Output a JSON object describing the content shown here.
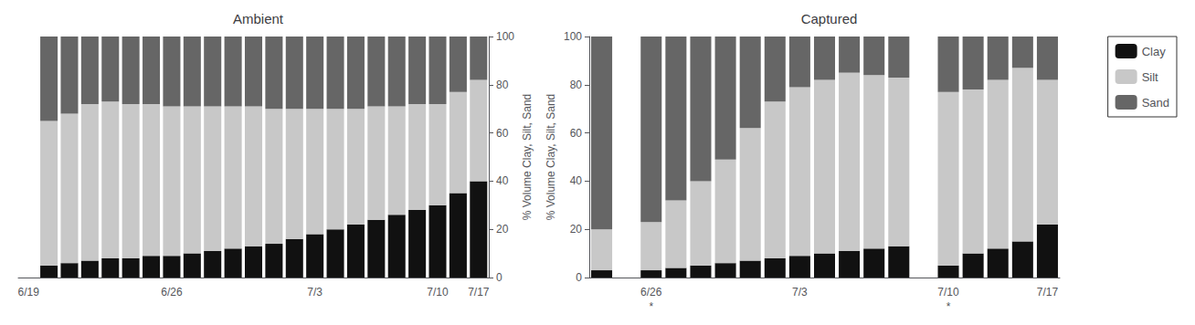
{
  "chart_data": [
    {
      "type": "bar",
      "title": "Ambient",
      "ylabel": "% Volume Clay, Silt, Sand",
      "stacked": true,
      "grid": false,
      "categories": [
        "6/19",
        null,
        null,
        null,
        null,
        null,
        null,
        "6/26",
        null,
        null,
        null,
        null,
        null,
        null,
        "7/3",
        null,
        null,
        null,
        null,
        null,
        "7/10",
        null,
        "7/17"
      ],
      "series": [
        {
          "name": "Clay",
          "color": "#111111",
          "values": [
            0,
            5,
            6,
            7,
            8,
            8,
            9,
            9,
            10,
            11,
            12,
            13,
            14,
            16,
            18,
            20,
            22,
            24,
            26,
            28,
            30,
            35,
            40
          ]
        },
        {
          "name": "Silt",
          "color": "#c8c8c8",
          "values": [
            0,
            60,
            62,
            65,
            65,
            64,
            63,
            62,
            61,
            60,
            59,
            58,
            56,
            54,
            52,
            50,
            48,
            47,
            45,
            44,
            42,
            42,
            42
          ]
        },
        {
          "name": "Sand",
          "color": "#666666",
          "values": [
            0,
            35,
            32,
            28,
            27,
            28,
            28,
            29,
            29,
            29,
            29,
            29,
            30,
            30,
            30,
            30,
            30,
            29,
            29,
            28,
            28,
            23,
            18
          ]
        }
      ],
      "ylim": [
        0,
        100
      ],
      "yticks": [
        0,
        20,
        40,
        60,
        80,
        100
      ]
    },
    {
      "type": "bar",
      "title": "Captured",
      "ylabel": "% Volume Clay, Silt, Sand",
      "stacked": true,
      "grid": false,
      "legend": "upper right",
      "categories": [
        null,
        null,
        "6/26",
        null,
        null,
        null,
        null,
        null,
        "7/3",
        null,
        null,
        null,
        null,
        null,
        "7/10",
        null,
        null,
        null,
        "7/17"
      ],
      "series": [
        {
          "name": "Clay",
          "color": "#111111",
          "values": [
            3,
            0,
            3,
            4,
            5,
            6,
            7,
            8,
            9,
            10,
            11,
            12,
            13,
            0,
            5,
            10,
            12,
            15,
            22
          ]
        },
        {
          "name": "Silt",
          "color": "#c8c8c8",
          "values": [
            17,
            0,
            20,
            28,
            35,
            43,
            55,
            65,
            70,
            72,
            74,
            72,
            70,
            0,
            72,
            68,
            70,
            72,
            60
          ]
        },
        {
          "name": "Sand",
          "color": "#666666",
          "values": [
            80,
            0,
            77,
            68,
            60,
            51,
            38,
            27,
            21,
            18,
            15,
            16,
            17,
            0,
            23,
            22,
            18,
            13,
            18
          ]
        }
      ],
      "annotations": [
        {
          "text": "*",
          "category": "6/26"
        },
        {
          "text": "*",
          "category": "7/10"
        }
      ],
      "ylim": [
        0,
        100
      ],
      "yticks": [
        0,
        20,
        40,
        60,
        80,
        100
      ]
    }
  ]
}
